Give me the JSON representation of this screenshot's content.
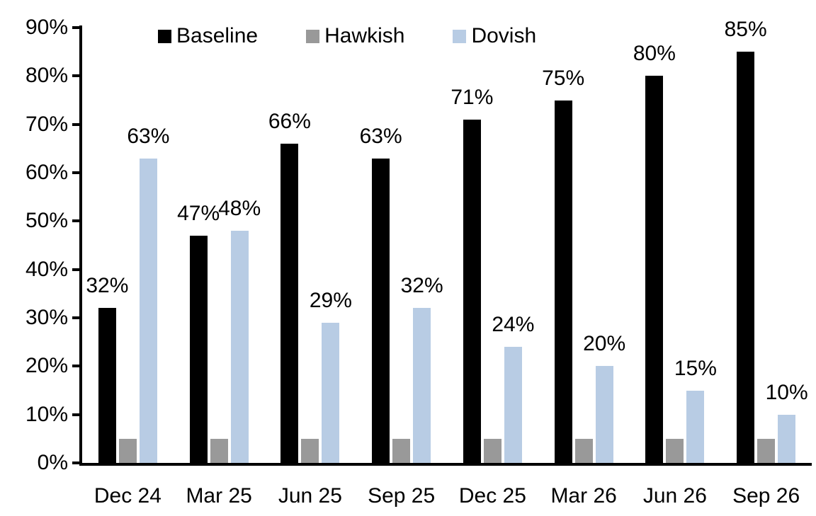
{
  "chart_data": {
    "type": "bar",
    "title": "",
    "xlabel": "",
    "ylabel": "",
    "categories": [
      "Dec 24",
      "Mar 25",
      "Jun 25",
      "Sep 25",
      "Dec 25",
      "Mar 26",
      "Jun 26",
      "Sep 26"
    ],
    "series": [
      {
        "name": "Baseline",
        "color": "#000000",
        "values": [
          32,
          47,
          66,
          63,
          71,
          75,
          80,
          85
        ],
        "labels": [
          "32%",
          "47%",
          "66%",
          "63%",
          "71%",
          "75%",
          "80%",
          "85%"
        ]
      },
      {
        "name": "Hawkish",
        "color": "#999999",
        "values": [
          5,
          5,
          5,
          5,
          5,
          5,
          5,
          5
        ],
        "labels": null
      },
      {
        "name": "Dovish",
        "color": "#b8cce4",
        "values": [
          63,
          48,
          29,
          32,
          24,
          20,
          15,
          10
        ],
        "labels": [
          "63%",
          "48%",
          "29%",
          "32%",
          "24%",
          "20%",
          "15%",
          "10%"
        ]
      }
    ],
    "ylim": [
      0,
      90
    ],
    "ytick_step": 10,
    "ytick_labels": [
      "0%",
      "10%",
      "20%",
      "30%",
      "40%",
      "50%",
      "60%",
      "70%",
      "80%",
      "90%"
    ],
    "grid": false,
    "legend_position": "top",
    "colors": {
      "axis": "#000000",
      "text": "#000000",
      "background": "#ffffff"
    }
  }
}
